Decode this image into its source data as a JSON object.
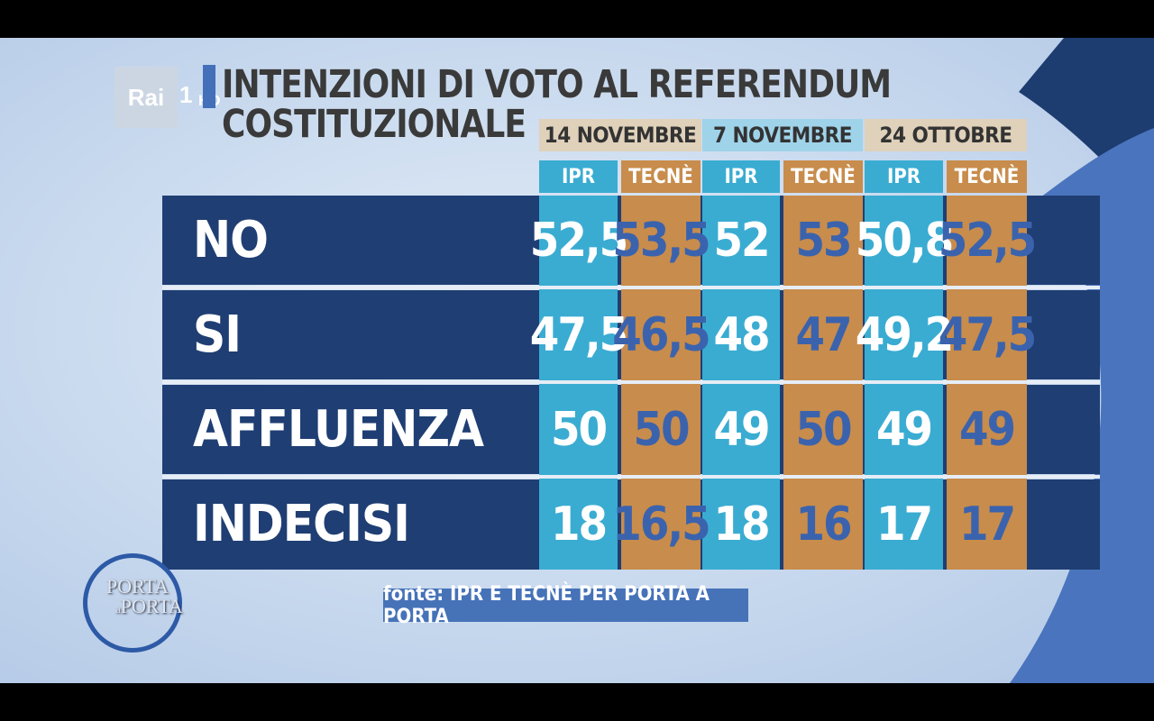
{
  "channel": {
    "brand": "Rai",
    "number": "1",
    "quality": "HD"
  },
  "title_line1": "INTENZIONI DI VOTO AL REFERENDUM",
  "title_line2": "COSTITUZIONALE",
  "footer": "fonte: IPR E TECNÈ PER PORTA A PORTA",
  "show_logo": {
    "line1": "PORTA",
    "line2_small": "a",
    "line2": "PORTA"
  },
  "colors": {
    "band": "#1f3e73",
    "ipr": "#3aacd2",
    "tecne": "#c88c4c",
    "date_beige": "#dfd1ba",
    "date_blue": "#9fd3ea"
  },
  "chart_data": {
    "type": "table",
    "groups": [
      "14 NOVEMBRE",
      "7 NOVEMBRE",
      "24 OTTOBRE"
    ],
    "sources": [
      "IPR",
      "TECNÈ",
      "IPR",
      "TECNÈ",
      "IPR",
      "TECNÈ"
    ],
    "rows": [
      {
        "label": "NO",
        "values": [
          "52,5",
          "53,5",
          "52",
          "53",
          "50,8",
          "52,5"
        ]
      },
      {
        "label": "SI",
        "values": [
          "47,5",
          "46,5",
          "48",
          "47",
          "49,2",
          "47,5"
        ]
      },
      {
        "label": "AFFLUENZA",
        "values": [
          "50",
          "50",
          "49",
          "50",
          "49",
          "49"
        ]
      },
      {
        "label": "INDECISI",
        "values": [
          "18",
          "16,5",
          "18",
          "16",
          "17",
          "17"
        ]
      }
    ]
  }
}
